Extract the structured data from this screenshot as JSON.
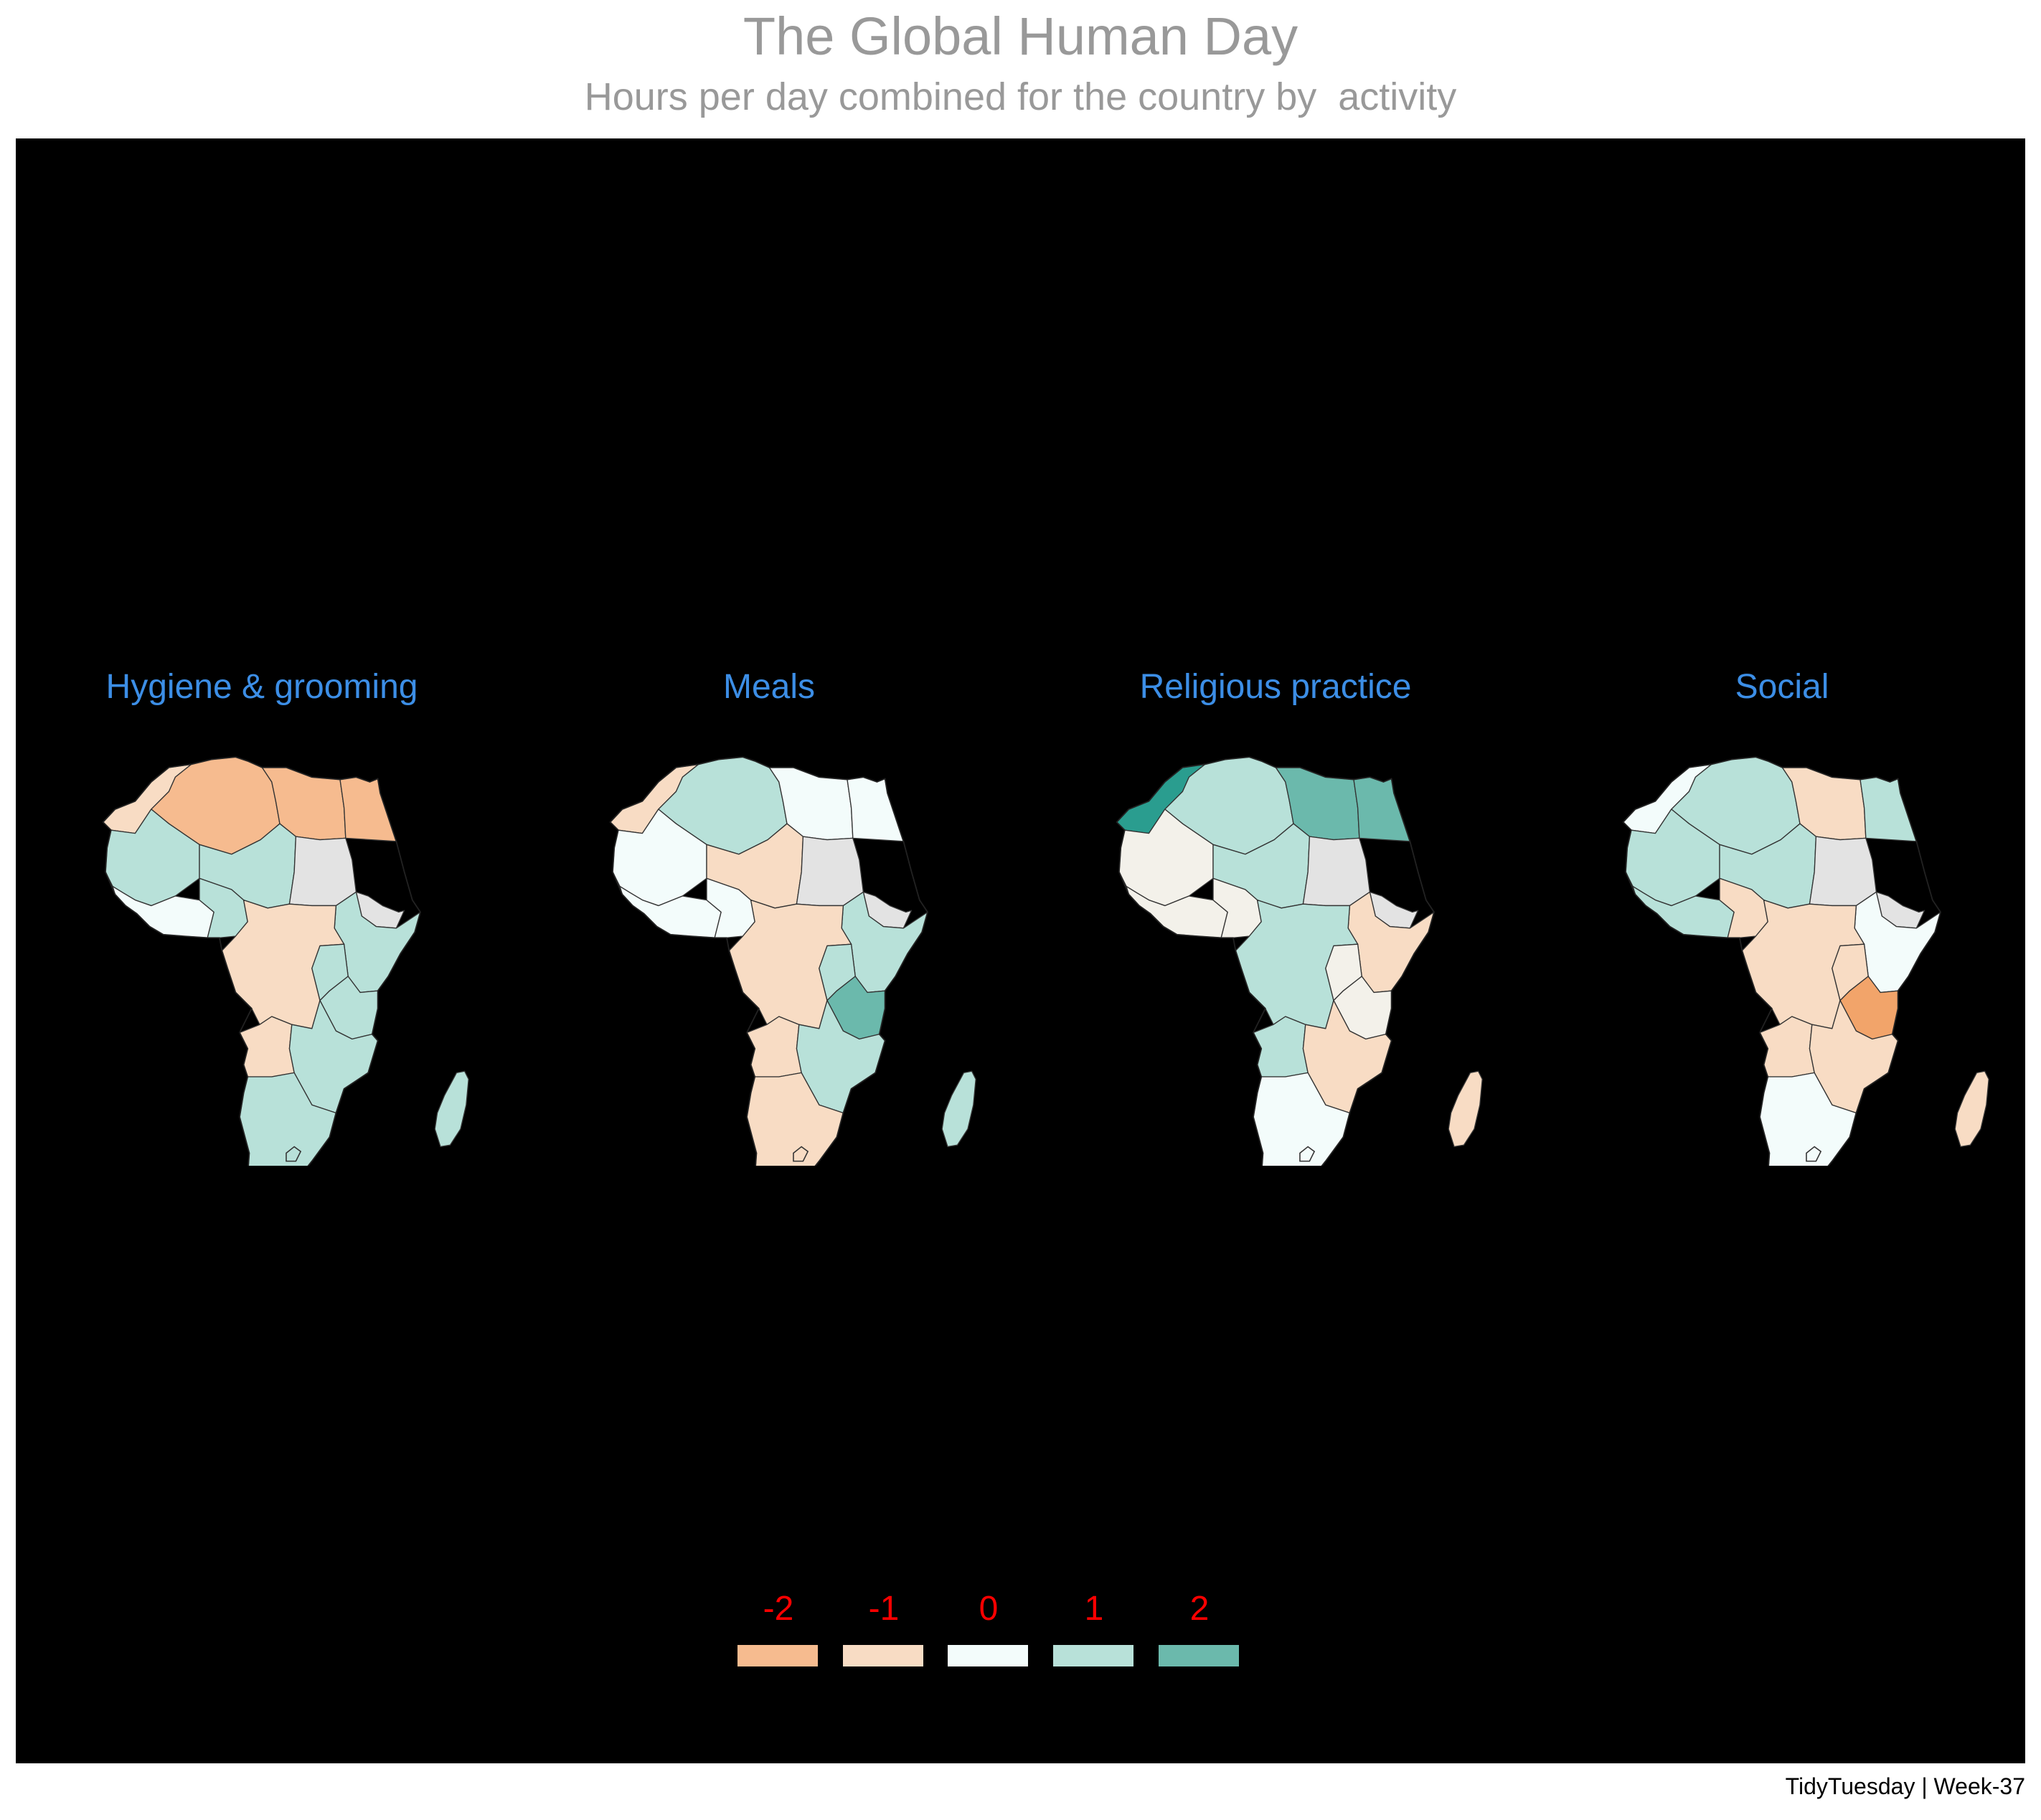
{
  "title": "The Global Human Day",
  "subtitle": "Hours per day combined for the country by  activity",
  "caption": "TidyTuesday | Week-37",
  "colors": {
    "-2": "#f6bb8f",
    "-1": "#f8dcc4",
    "0": "#f3fcfb",
    "1": "#b8e1d9",
    "2": "#6bb9ac",
    "3": "#2a9d8f",
    "-3": "#f2a46a",
    "na": "#e3e3e3",
    "neutral": "#f3f1ea"
  },
  "legend": {
    "items": [
      {
        "label": "-2",
        "color": "#f6bb8f"
      },
      {
        "label": "-1",
        "color": "#f8dcc4"
      },
      {
        "label": "0",
        "color": "#f3fcfb"
      },
      {
        "label": "1",
        "color": "#b8e1d9"
      },
      {
        "label": "2",
        "color": "#6bb9ac"
      }
    ]
  },
  "chart_data": {
    "type": "choropleth",
    "region": "Africa",
    "facets": [
      {
        "title": "Hygiene & grooming",
        "regions": {
          "maghreb_west": "-1",
          "north_mid": "-2",
          "north_east": "-2",
          "egypt": "-2",
          "sahel_west": "1",
          "west_coast": "0",
          "sahel_mid": "1",
          "nigeria": "1",
          "sudan": "na",
          "horn": "na",
          "east_horn": "1",
          "central": "-1",
          "great_lakes": "1",
          "east": "1",
          "angola": "-1",
          "south_central": "1",
          "southern": "1",
          "madagascar": "1"
        }
      },
      {
        "title": "Meals",
        "regions": {
          "maghreb_west": "-1",
          "north_mid": "1",
          "north_east": "0",
          "egypt": "0",
          "sahel_west": "0",
          "west_coast": "0",
          "sahel_mid": "-1",
          "nigeria": "0",
          "sudan": "na",
          "horn": "na",
          "east_horn": "1",
          "central": "-1",
          "great_lakes": "1",
          "east": "2",
          "angola": "-1",
          "south_central": "1",
          "southern": "-1",
          "madagascar": "1"
        }
      },
      {
        "title": "Religious practice",
        "regions": {
          "maghreb_west": "3",
          "north_mid": "1",
          "north_east": "2",
          "egypt": "2",
          "sahel_west": "neutral",
          "west_coast": "neutral",
          "sahel_mid": "1",
          "nigeria": "neutral",
          "sudan": "na",
          "horn": "na",
          "east_horn": "-1",
          "central": "1",
          "great_lakes": "neutral",
          "east": "neutral",
          "angola": "1",
          "south_central": "-1",
          "southern": "0",
          "madagascar": "-1"
        }
      },
      {
        "title": "Social",
        "regions": {
          "maghreb_west": "0",
          "north_mid": "1",
          "north_east": "-1",
          "egypt": "1",
          "sahel_west": "1",
          "west_coast": "1",
          "sahel_mid": "1",
          "nigeria": "-1",
          "sudan": "na",
          "horn": "na",
          "east_horn": "0",
          "central": "-1",
          "great_lakes": "-1",
          "east": "-3",
          "angola": "-1",
          "south_central": "-1",
          "southern": "0",
          "madagascar": "-1"
        }
      }
    ]
  }
}
